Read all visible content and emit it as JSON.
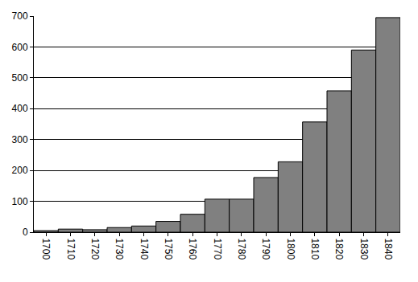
{
  "chart_data": {
    "type": "bar",
    "categories": [
      "1700",
      "1710",
      "1720",
      "1730",
      "1740",
      "1750",
      "1760",
      "1770",
      "1780",
      "1790",
      "1800",
      "1810",
      "1820",
      "1830",
      "1840"
    ],
    "values": [
      5,
      10,
      8,
      15,
      20,
      35,
      58,
      107,
      107,
      177,
      228,
      357,
      458,
      590,
      695
    ],
    "color": "#808080",
    "ylim": [
      0,
      700
    ],
    "yticks": [
      0,
      100,
      200,
      300,
      400,
      500,
      600,
      700
    ],
    "grid": true
  }
}
